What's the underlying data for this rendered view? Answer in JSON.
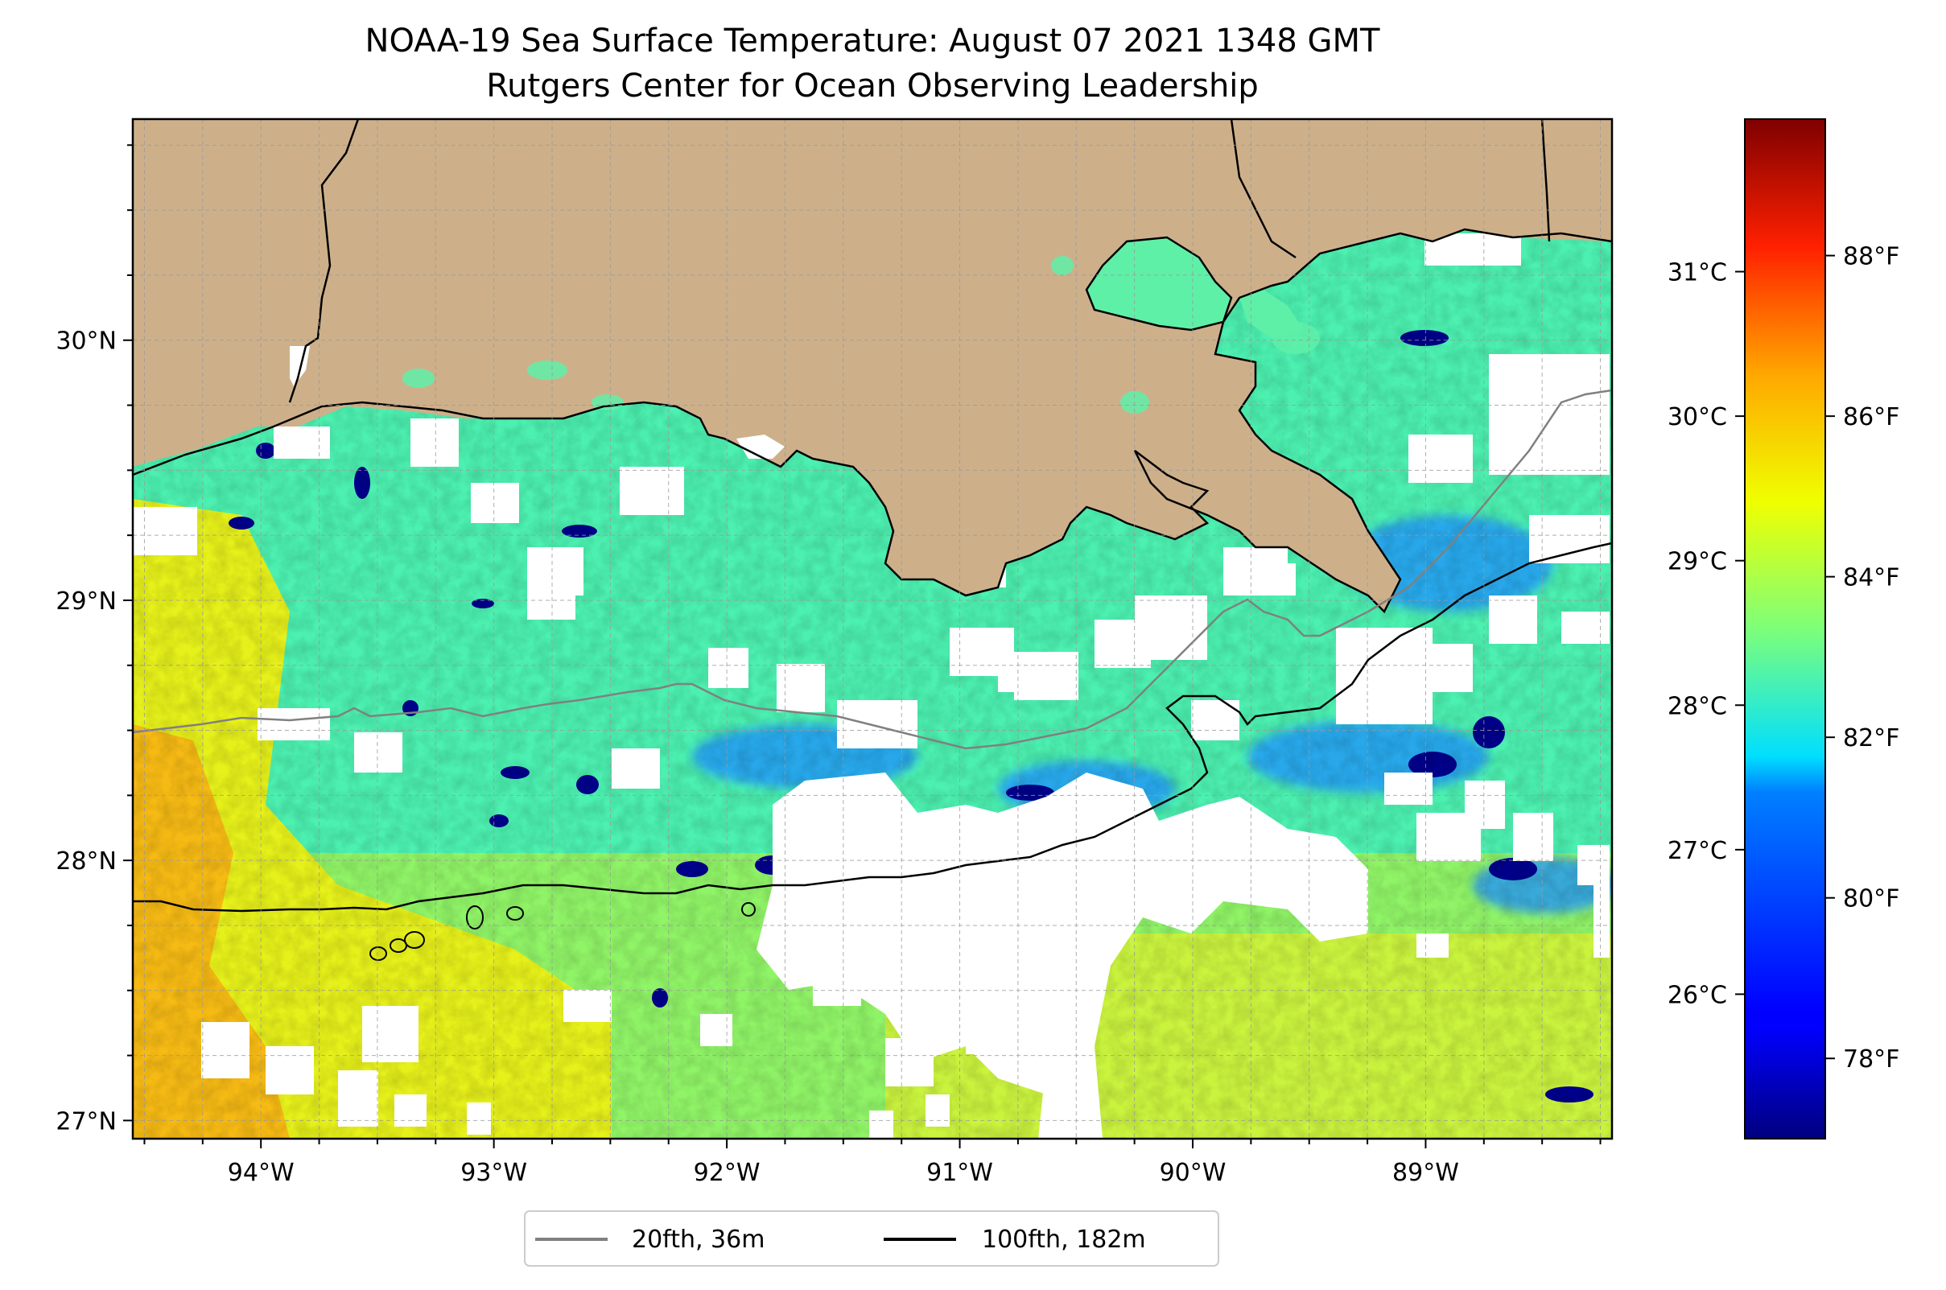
{
  "title": {
    "line1": "NOAA-19 Sea Surface Temperature: August 07 2021 1348 GMT",
    "line2": "Rutgers Center for Ocean Observing Leadership"
  },
  "map": {
    "lon_range": [
      -94.55,
      -88.2
    ],
    "lat_range": [
      26.93,
      30.85
    ],
    "gridlines": true,
    "land_color": "#cdb08a",
    "no_data_color": "#ffffff"
  },
  "axes": {
    "lon_ticks": [
      {
        "value": -94,
        "label": "94°W"
      },
      {
        "value": -93,
        "label": "93°W"
      },
      {
        "value": -92,
        "label": "92°W"
      },
      {
        "value": -91,
        "label": "91°W"
      },
      {
        "value": -90,
        "label": "90°W"
      },
      {
        "value": -89,
        "label": "89°W"
      }
    ],
    "lat_ticks": [
      {
        "value": 30,
        "label": "30°N"
      },
      {
        "value": 29,
        "label": "29°N"
      },
      {
        "value": 28,
        "label": "28°N"
      },
      {
        "value": 27,
        "label": "27°N"
      }
    ]
  },
  "colorbar": {
    "colormap": "jet",
    "range_f": [
      77.0,
      89.7
    ],
    "left_ticks": [
      {
        "value_c": 31,
        "label": "31°C"
      },
      {
        "value_c": 30,
        "label": "30°C"
      },
      {
        "value_c": 29,
        "label": "29°C"
      },
      {
        "value_c": 28,
        "label": "28°C"
      },
      {
        "value_c": 27,
        "label": "27°C"
      },
      {
        "value_c": 26,
        "label": "26°C"
      }
    ],
    "right_ticks": [
      {
        "value_f": 88,
        "label": "88°F"
      },
      {
        "value_f": 86,
        "label": "86°F"
      },
      {
        "value_f": 84,
        "label": "84°F"
      },
      {
        "value_f": 82,
        "label": "82°F"
      },
      {
        "value_f": 80,
        "label": "80°F"
      },
      {
        "value_f": 78,
        "label": "78°F"
      }
    ]
  },
  "legend": {
    "items": [
      {
        "label": "20fth, 36m",
        "color": "#808080"
      },
      {
        "label": "100fth, 182m",
        "color": "#000000"
      }
    ]
  }
}
